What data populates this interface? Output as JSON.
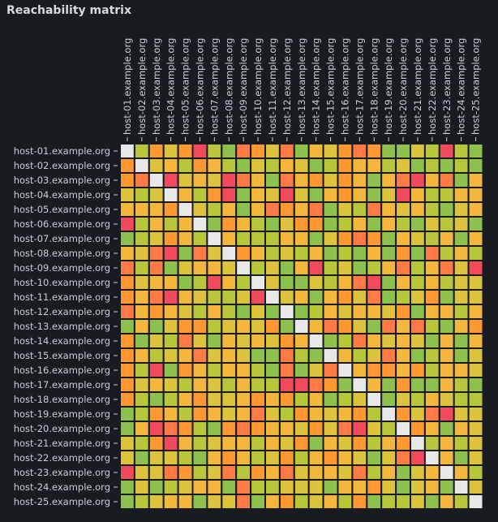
{
  "panel": {
    "title": "Reachability matrix"
  },
  "colors": {
    "background": "#181b1f",
    "text": "#ccccdc",
    "diagonal": "#e8e8e8",
    "scale": [
      "#f2495c",
      "#ff7a45",
      "#ff9830",
      "#f5b73b",
      "#dcc33b",
      "#b8c73a",
      "#8dc04c"
    ]
  },
  "chart_data": {
    "type": "heatmap",
    "title": "Reachability matrix",
    "x_categories": [
      "host-01.example.org",
      "host-02.example.org",
      "host-03.example.org",
      "host-04.example.org",
      "host-05.example.org",
      "host-06.example.org",
      "host-07.example.org",
      "host-08.example.org",
      "host-09.example.org",
      "host-10.example.org",
      "host-11.example.org",
      "host-12.example.org",
      "host-13.example.org",
      "host-14.example.org",
      "host-15.example.org",
      "host-16.example.org",
      "host-17.example.org",
      "host-18.example.org",
      "host-19.example.org",
      "host-20.example.org",
      "host-21.example.org",
      "host-22.example.org",
      "host-23.example.org",
      "host-24.example.org",
      "host-25.example.org"
    ],
    "y_categories": [
      "host-01.example.org",
      "host-02.example.org",
      "host-03.example.org",
      "host-04.example.org",
      "host-05.example.org",
      "host-06.example.org",
      "host-07.example.org",
      "host-08.example.org",
      "host-09.example.org",
      "host-10.example.org",
      "host-11.example.org",
      "host-12.example.org",
      "host-13.example.org",
      "host-14.example.org",
      "host-15.example.org",
      "host-16.example.org",
      "host-17.example.org",
      "host-18.example.org",
      "host-19.example.org",
      "host-20.example.org",
      "host-21.example.org",
      "host-22.example.org",
      "host-23.example.org",
      "host-24.example.org",
      "host-25.example.org"
    ],
    "value_range": [
      0,
      6
    ],
    "diagonal_value": null,
    "values": [
      [
        null,
        5,
        2,
        4,
        2,
        0,
        5,
        6,
        1,
        2,
        4,
        1,
        6,
        3,
        4,
        2,
        1,
        2,
        6,
        6,
        4,
        5,
        0,
        5,
        6
      ],
      [
        2,
        null,
        4,
        3,
        5,
        2,
        3,
        5,
        6,
        4,
        5,
        3,
        4,
        6,
        5,
        2,
        3,
        3,
        5,
        4,
        6,
        5,
        6,
        5,
        6
      ],
      [
        2,
        1,
        null,
        0,
        4,
        3,
        4,
        0,
        1,
        3,
        6,
        1,
        3,
        2,
        4,
        2,
        3,
        6,
        3,
        1,
        0,
        3,
        1,
        6,
        3
      ],
      [
        4,
        5,
        4,
        null,
        3,
        5,
        2,
        0,
        6,
        3,
        4,
        0,
        4,
        6,
        3,
        2,
        3,
        6,
        4,
        0,
        3,
        5,
        5,
        3,
        3
      ],
      [
        3,
        3,
        3,
        2,
        null,
        4,
        5,
        3,
        6,
        3,
        1,
        2,
        3,
        1,
        6,
        4,
        5,
        1,
        3,
        4,
        3,
        5,
        6,
        4,
        3
      ],
      [
        0,
        5,
        3,
        5,
        3,
        null,
        6,
        2,
        3,
        5,
        6,
        4,
        2,
        2,
        6,
        5,
        3,
        6,
        3,
        5,
        6,
        4,
        5,
        4,
        6
      ],
      [
        6,
        5,
        4,
        2,
        3,
        5,
        null,
        3,
        5,
        5,
        5,
        3,
        3,
        6,
        4,
        2,
        1,
        2,
        6,
        3,
        4,
        5,
        3,
        6,
        3
      ],
      [
        3,
        4,
        1,
        0,
        6,
        1,
        4,
        null,
        2,
        3,
        5,
        4,
        5,
        3,
        6,
        5,
        6,
        3,
        6,
        2,
        6,
        1,
        5,
        3,
        5
      ],
      [
        1,
        5,
        1,
        6,
        4,
        3,
        3,
        4,
        null,
        5,
        4,
        6,
        3,
        0,
        5,
        4,
        6,
        5,
        3,
        1,
        5,
        3,
        1,
        4,
        0
      ],
      [
        2,
        4,
        3,
        3,
        6,
        5,
        0,
        3,
        5,
        null,
        4,
        6,
        6,
        4,
        5,
        3,
        1,
        0,
        6,
        3,
        5,
        3,
        5,
        4,
        4
      ],
      [
        2,
        3,
        1,
        0,
        3,
        4,
        5,
        5,
        4,
        0,
        null,
        4,
        3,
        6,
        3,
        2,
        4,
        1,
        6,
        5,
        4,
        2,
        6,
        4,
        4
      ],
      [
        1,
        3,
        2,
        3,
        4,
        5,
        3,
        5,
        6,
        4,
        6,
        null,
        6,
        5,
        3,
        4,
        3,
        3,
        4,
        2,
        6,
        3,
        3,
        5,
        3
      ],
      [
        6,
        3,
        6,
        4,
        2,
        2,
        5,
        4,
        3,
        4,
        2,
        6,
        null,
        3,
        1,
        2,
        4,
        6,
        1,
        3,
        1,
        5,
        6,
        3,
        2
      ],
      [
        2,
        6,
        4,
        5,
        1,
        4,
        6,
        3,
        4,
        3,
        4,
        2,
        3,
        null,
        6,
        5,
        1,
        3,
        4,
        3,
        4,
        6,
        3,
        6,
        3
      ],
      [
        2,
        3,
        5,
        4,
        3,
        1,
        4,
        3,
        4,
        6,
        6,
        1,
        5,
        6,
        null,
        3,
        5,
        4,
        1,
        3,
        6,
        5,
        3,
        6,
        4
      ],
      [
        2,
        5,
        0,
        6,
        2,
        3,
        5,
        3,
        3,
        5,
        6,
        1,
        6,
        4,
        1,
        null,
        3,
        2,
        2,
        3,
        2,
        5,
        3,
        3,
        4
      ],
      [
        2,
        4,
        3,
        4,
        5,
        3,
        4,
        5,
        3,
        5,
        5,
        0,
        0,
        1,
        2,
        6,
        null,
        3,
        6,
        2,
        6,
        6,
        3,
        5,
        6
      ],
      [
        2,
        5,
        6,
        5,
        3,
        2,
        4,
        4,
        3,
        2,
        3,
        2,
        5,
        3,
        6,
        5,
        4,
        null,
        6,
        4,
        5,
        3,
        4,
        5,
        5
      ],
      [
        6,
        5,
        2,
        3,
        5,
        2,
        3,
        4,
        3,
        1,
        4,
        5,
        2,
        3,
        4,
        3,
        2,
        5,
        null,
        2,
        4,
        1,
        0,
        4,
        4
      ],
      [
        6,
        3,
        0,
        1,
        2,
        5,
        6,
        2,
        1,
        2,
        3,
        3,
        4,
        2,
        4,
        1,
        0,
        4,
        5,
        null,
        2,
        3,
        6,
        3,
        4
      ],
      [
        4,
        5,
        2,
        0,
        3,
        5,
        4,
        3,
        3,
        5,
        3,
        4,
        2,
        6,
        3,
        4,
        2,
        5,
        3,
        2,
        null,
        5,
        3,
        5,
        4
      ],
      [
        4,
        6,
        4,
        4,
        5,
        6,
        3,
        2,
        3,
        5,
        4,
        2,
        5,
        3,
        2,
        3,
        4,
        6,
        4,
        1,
        0,
        null,
        3,
        6,
        4
      ],
      [
        0,
        4,
        4,
        1,
        2,
        5,
        4,
        1,
        5,
        2,
        3,
        1,
        4,
        3,
        3,
        4,
        1,
        5,
        3,
        6,
        4,
        3,
        null,
        3,
        5
      ],
      [
        6,
        4,
        6,
        5,
        4,
        3,
        3,
        6,
        1,
        5,
        5,
        4,
        4,
        4,
        6,
        3,
        3,
        2,
        4,
        6,
        4,
        3,
        6,
        null,
        4
      ],
      [
        6,
        5,
        4,
        3,
        3,
        6,
        4,
        4,
        1,
        6,
        3,
        2,
        5,
        4,
        3,
        5,
        2,
        6,
        5,
        5,
        4,
        6,
        3,
        5,
        null
      ]
    ]
  }
}
